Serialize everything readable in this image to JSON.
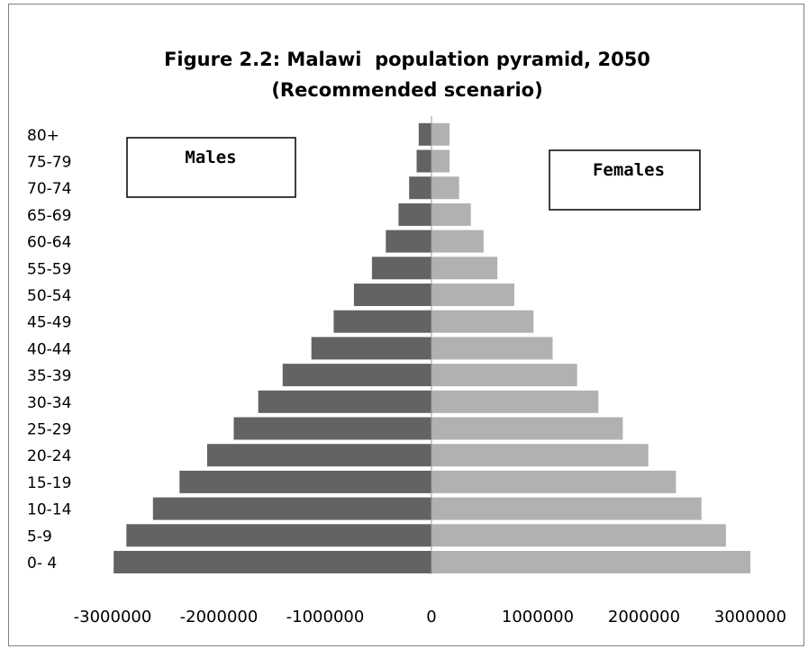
{
  "chart_data": {
    "type": "bar",
    "orientation": "horizontal",
    "title_line1": "Figure 2.2: Malawi  population pyramid, 2050",
    "title_line2": "(Recommended scenario)",
    "categories": [
      "0- 4",
      "5-9",
      "10-14",
      "15-19",
      "20-24",
      "25-29",
      "30-34",
      "35-39",
      "40-44",
      "45-49",
      "50-54",
      "55-59",
      "60-64",
      "65-69",
      "70-74",
      "75-79",
      "80+"
    ],
    "series": [
      {
        "name": "Males",
        "color": "#636363",
        "values": [
          -2990000,
          -2870000,
          -2620000,
          -2370000,
          -2110000,
          -1860000,
          -1630000,
          -1400000,
          -1130000,
          -920000,
          -730000,
          -560000,
          -430000,
          -310000,
          -210000,
          -140000,
          -120000
        ]
      },
      {
        "name": "Females",
        "color": "#b1b1b1",
        "values": [
          3000000,
          2770000,
          2540000,
          2300000,
          2040000,
          1800000,
          1570000,
          1370000,
          1140000,
          960000,
          780000,
          620000,
          490000,
          370000,
          260000,
          170000,
          170000
        ]
      }
    ],
    "x_ticks": [
      "-3000000",
      "-2000000",
      "-1000000",
      "0",
      "1000000",
      "2000000",
      "3000000"
    ],
    "xlim": [
      -3000000,
      3000000
    ],
    "grid": false,
    "legend": "boxed labels inside plot"
  }
}
